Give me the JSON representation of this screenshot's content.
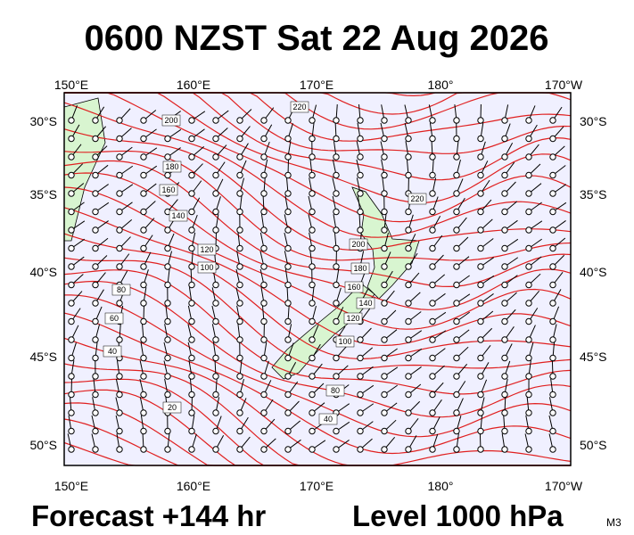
{
  "header": {
    "title": "0600 NZST Sat 22 Aug 2026"
  },
  "map": {
    "longitude_labels": [
      "150°E",
      "160°E",
      "170°E",
      "180°",
      "170°W"
    ],
    "latitude_labels": [
      "30°S",
      "35°S",
      "40°S",
      "45°S",
      "50°S"
    ],
    "contour_labels": [
      "200",
      "180",
      "160",
      "140",
      "120",
      "100",
      "80",
      "60",
      "40",
      "20",
      "220",
      "220",
      "200",
      "180",
      "160",
      "140",
      "120",
      "100",
      "80",
      "40"
    ]
  },
  "footer": {
    "forecast": "Forecast +144 hr",
    "level": "Level 1000 hPa",
    "model": "M3"
  }
}
